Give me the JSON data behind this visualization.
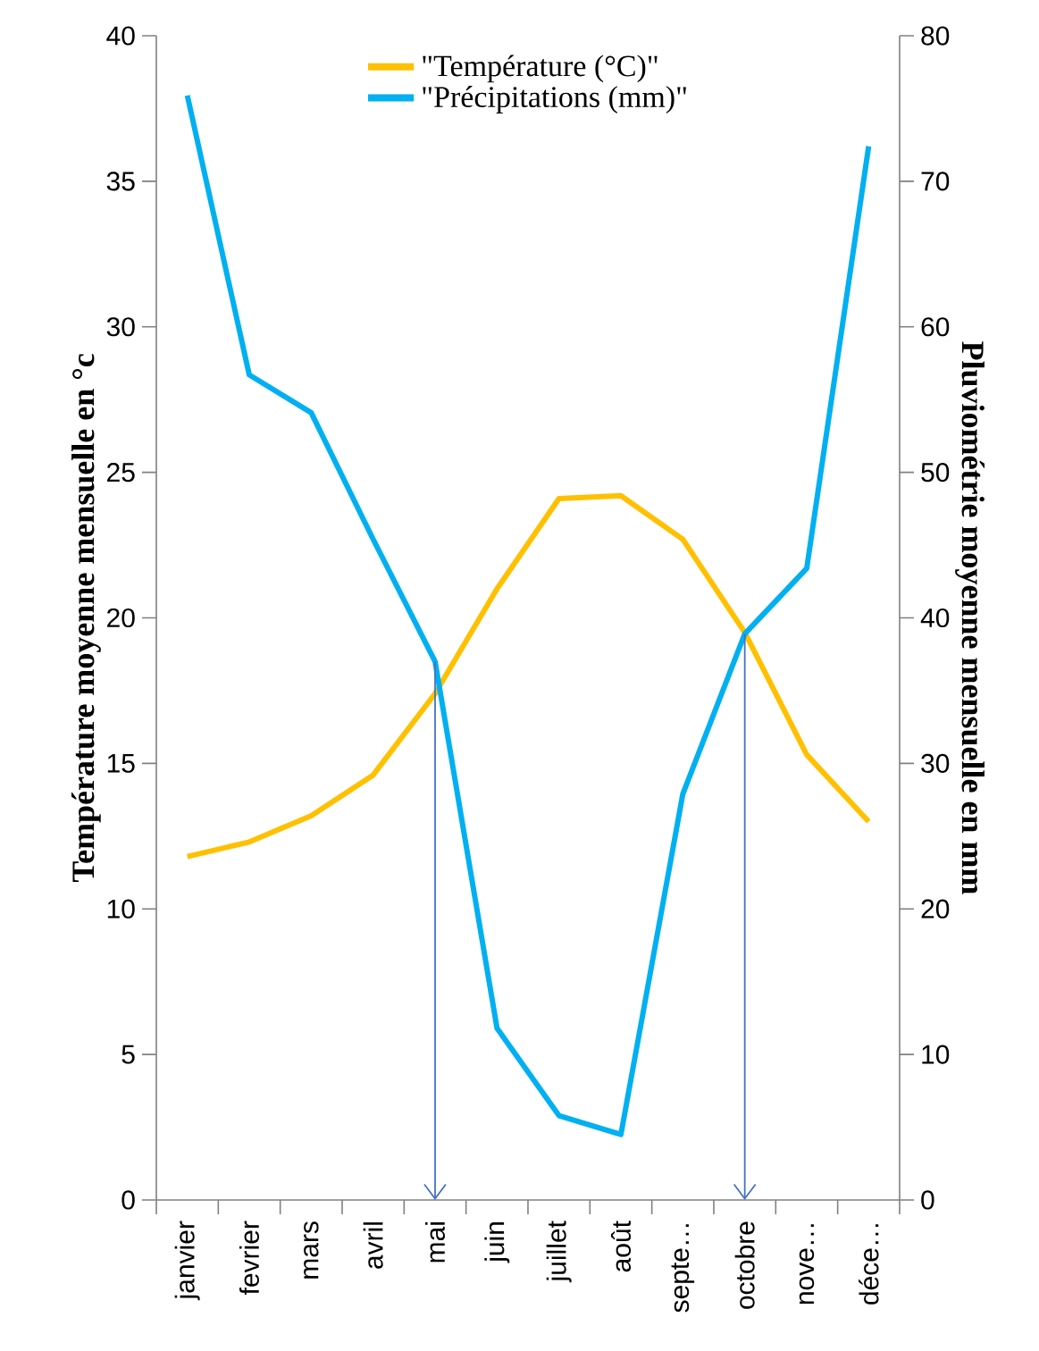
{
  "chart_data": {
    "type": "line",
    "xlabel": null,
    "ylabel": "Température moyenne mensuelle en °c",
    "y2label": "Pluviométrie moyenne mensuelle en mm",
    "categories": [
      "janvier",
      "fevrier",
      "mars",
      "avril",
      "mai",
      "juin",
      "juillet",
      "août",
      "septe…",
      "octobre",
      "nove…",
      "déce…"
    ],
    "series": [
      {
        "name": "\"Température (°C)\"",
        "color": "#ffc000",
        "values": [
          11.8,
          12.3,
          13.2,
          14.6,
          17.4,
          21.0,
          24.1,
          24.2,
          22.7,
          19.5,
          15.3,
          13.0
        ]
      },
      {
        "name": "\"Précipitations (mm)\"",
        "color": "#00b0f0",
        "axis": "y2",
        "values": [
          75.9,
          56.7,
          54.1,
          45.4,
          37.0,
          11.8,
          5.8,
          4.5,
          27.9,
          38.9,
          43.4,
          72.4
        ]
      }
    ],
    "ylim": [
      0,
      40
    ],
    "yticks": [
      0,
      5,
      10,
      15,
      20,
      25,
      30,
      35,
      40
    ],
    "y2lim": [
      0,
      80
    ],
    "y2ticks": [
      0,
      10,
      20,
      30,
      40,
      50,
      60,
      70,
      80
    ],
    "ref_lines": [
      {
        "axis": "x",
        "value": "mai",
        "color": "#4472c4"
      },
      {
        "axis": "x",
        "value": "octobre",
        "color": "#4472c4"
      }
    ],
    "legend": "top",
    "grid": false,
    "marker": "none",
    "line_style": "solid"
  }
}
